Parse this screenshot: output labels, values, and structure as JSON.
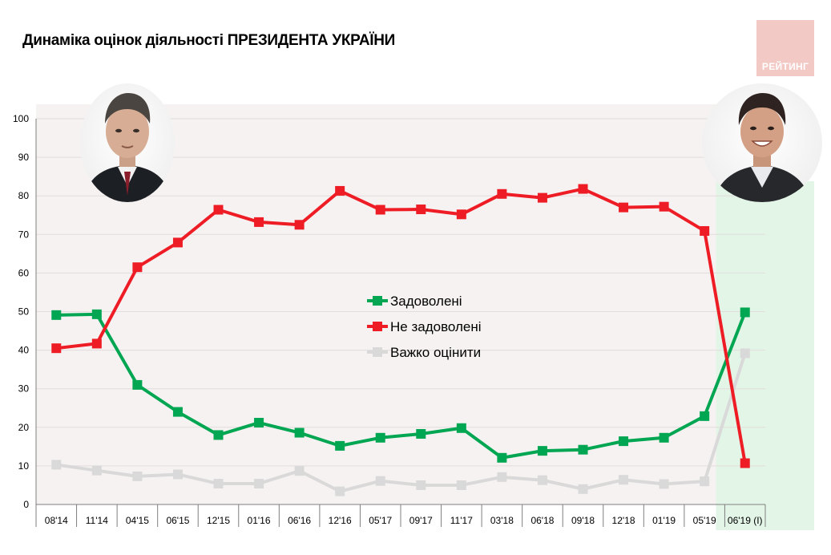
{
  "title": "Динаміка оцінок діяльності ПРЕЗИДЕНТА УКРАЇНИ",
  "logo": {
    "text": "РЕЙТИНГ"
  },
  "colors": {
    "satisfied": "#00a651",
    "dissatisfied": "#ee1c24",
    "hard": "#d9d9d9",
    "plot_bg": "#f7f2f2",
    "highlight_bg": "#e3f5e7",
    "logo_bg": "#f3c9c6"
  },
  "chart_data": {
    "type": "line",
    "title": "Динаміка оцінок діяльності ПРЕЗИДЕНТА УКРАЇНИ",
    "categories": [
      "08'14",
      "11'14",
      "04'15",
      "06'15",
      "12'15",
      "01'16",
      "06'16",
      "12'16",
      "05'17",
      "09'17",
      "11'17",
      "03'18",
      "06'18",
      "09'18",
      "12'18",
      "01'19",
      "05'19",
      "06'19 (І)"
    ],
    "y_ticks": [
      0,
      10,
      20,
      30,
      40,
      50,
      60,
      70,
      80,
      90,
      100
    ],
    "ylim": [
      0,
      100
    ],
    "grid": true,
    "legend_position": "center",
    "series": [
      {
        "name": "Задоволені",
        "color": "#00a651",
        "values": [
          49.1,
          49.3,
          31,
          24,
          18,
          21.2,
          18.6,
          15.2,
          17.3,
          18.3,
          19.8,
          12.1,
          13.9,
          14.2,
          16.4,
          17.3,
          22.9,
          49.8
        ]
      },
      {
        "name": "Не задоволені",
        "color": "#ee1c24",
        "values": [
          40.5,
          41.7,
          61.5,
          67.9,
          76.4,
          73.2,
          72.5,
          81.3,
          76.4,
          76.5,
          75.2,
          80.5,
          79.5,
          81.8,
          77,
          77.2,
          70.9,
          10.7
        ]
      },
      {
        "name": "Важко оцінити",
        "color": "#d9d9d9",
        "values": [
          10.3,
          8.8,
          7.3,
          7.8,
          5.4,
          5.4,
          8.7,
          3.4,
          6.1,
          5,
          5,
          7.1,
          6.3,
          4,
          6.4,
          5.3,
          6,
          39.2
        ]
      }
    ],
    "highlight_category": "06'19 (І)"
  }
}
